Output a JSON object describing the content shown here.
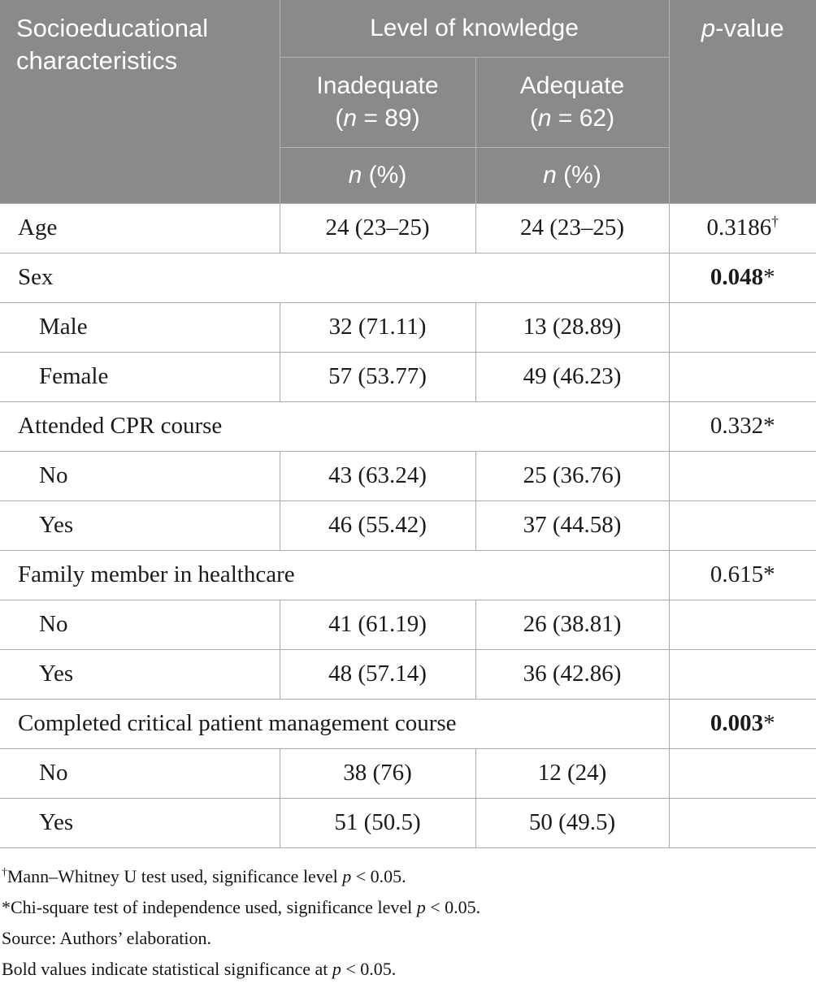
{
  "table": {
    "header": {
      "col1": "Socioeducational characteristics",
      "group": "Level of knowledge",
      "p_italic": "p",
      "p_rest": "-value",
      "inadequate": "Inadequate",
      "adequate": "Adequate",
      "paren_open": "(",
      "n_char": "n",
      "inadequate_count": " = 89)",
      "adequate_count": " = 62)",
      "n_pct_rest": " (%)"
    },
    "rows": [
      {
        "type": "data",
        "label": "Age",
        "inadequate": "24 (23–25)",
        "adequate": "24 (23–25)",
        "p": "0.3186",
        "marker": "†",
        "bold": false
      },
      {
        "type": "category",
        "label": "Sex",
        "p": "0.048",
        "marker": "*",
        "bold": true
      },
      {
        "type": "sub",
        "label": "Male",
        "inadequate": "32 (71.11)",
        "adequate": "13 (28.89)"
      },
      {
        "type": "sub",
        "label": "Female",
        "inadequate": "57 (53.77)",
        "adequate": "49 (46.23)"
      },
      {
        "type": "category",
        "label": "Attended CPR course",
        "p": "0.332",
        "marker": "*",
        "bold": false
      },
      {
        "type": "sub",
        "label": "No",
        "inadequate": "43 (63.24)",
        "adequate": "25 (36.76)"
      },
      {
        "type": "sub",
        "label": "Yes",
        "inadequate": "46 (55.42)",
        "adequate": "37 (44.58)"
      },
      {
        "type": "category",
        "label": "Family member in healthcare",
        "p": "0.615",
        "marker": "*",
        "bold": false
      },
      {
        "type": "sub",
        "label": "No",
        "inadequate": "41 (61.19)",
        "adequate": "26 (38.81)"
      },
      {
        "type": "sub",
        "label": "Yes",
        "inadequate": "48 (57.14)",
        "adequate": "36 (42.86)"
      },
      {
        "type": "category",
        "label": "Completed critical patient management course",
        "p": "0.003",
        "marker": "*",
        "bold": true
      },
      {
        "type": "sub",
        "label": "No",
        "inadequate": "38 (76)",
        "adequate": "12 (24)"
      },
      {
        "type": "sub",
        "label": "Yes",
        "inadequate": "51 (50.5)",
        "adequate": "50 (49.5)"
      }
    ]
  },
  "footnotes": [
    {
      "marker": "†",
      "pre": "Mann–Whitney U test used, significance level ",
      "p": "p",
      "post": " < 0.05."
    },
    {
      "marker": "*",
      "pre": "Chi-square test of independence used, significance level ",
      "p": "p",
      "post": " < 0.05."
    },
    {
      "text": "Source: Authors’ elaboration."
    },
    {
      "pre": "Bold values indicate statistical significance at ",
      "p": "p",
      "post": " < 0.05."
    }
  ],
  "colors": {
    "header_bg": "#8a8a8a",
    "header_text": "#ffffff",
    "border": "#aaaaaa",
    "text": "#1b1b1b"
  }
}
